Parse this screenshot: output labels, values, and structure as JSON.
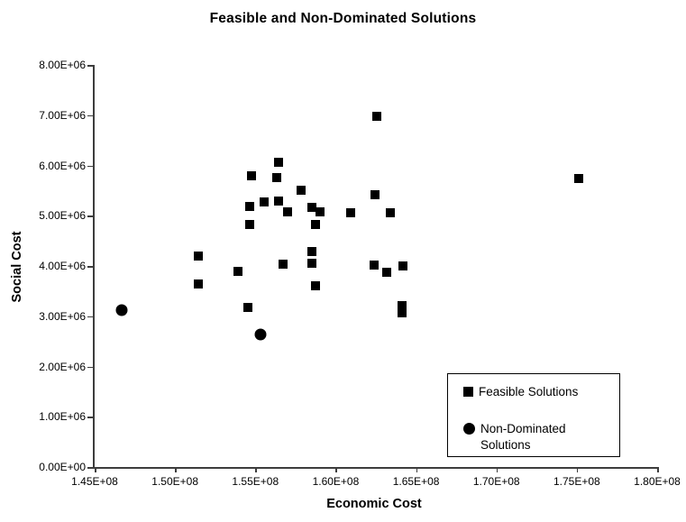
{
  "title": "Feasible and Non-Dominated Solutions",
  "colors": {
    "marker": "#000000",
    "axis": "#3d3d3d",
    "background": "#ffffff",
    "text": "#000000"
  },
  "chart_data": {
    "type": "scatter",
    "title": "Feasible and Non-Dominated Solutions",
    "xlabel": "Economic Cost",
    "ylabel": "Social Cost",
    "xlim": [
      145000000,
      180000000
    ],
    "ylim": [
      0,
      8000000
    ],
    "grid": false,
    "legend_position": "inside-bottom-right",
    "x_ticks": [
      "1.45E+08",
      "1.50E+08",
      "1.55E+08",
      "1.60E+08",
      "1.65E+08",
      "1.70E+08",
      "1.75E+08",
      "1.80E+08"
    ],
    "x_tick_values": [
      145000000,
      150000000,
      155000000,
      160000000,
      165000000,
      170000000,
      175000000,
      180000000
    ],
    "y_ticks": [
      "0.00E+00",
      "1.00E+06",
      "2.00E+06",
      "3.00E+06",
      "4.00E+06",
      "5.00E+06",
      "6.00E+06",
      "7.00E+06",
      "8.00E+06"
    ],
    "y_tick_values": [
      0,
      1000000,
      2000000,
      3000000,
      4000000,
      5000000,
      6000000,
      7000000,
      8000000
    ],
    "series": [
      {
        "name": "Feasible Solutions",
        "marker": "square",
        "color": "#000000",
        "points": [
          [
            156450000,
            6070000
          ],
          [
            154740000,
            5800000
          ],
          [
            156320000,
            5750000
          ],
          [
            157870000,
            5500000
          ],
          [
            155540000,
            5270000
          ],
          [
            156420000,
            5300000
          ],
          [
            154640000,
            5180000
          ],
          [
            156980000,
            5080000
          ],
          [
            158530000,
            5170000
          ],
          [
            159000000,
            5070000
          ],
          [
            154640000,
            4820000
          ],
          [
            158750000,
            4820000
          ],
          [
            160940000,
            5060000
          ],
          [
            163390000,
            5050000
          ],
          [
            162450000,
            5410000
          ],
          [
            162550000,
            6970000
          ],
          [
            175100000,
            5740000
          ],
          [
            151430000,
            4200000
          ],
          [
            151430000,
            3650000
          ],
          [
            153900000,
            3890000
          ],
          [
            154510000,
            3180000
          ],
          [
            156710000,
            4030000
          ],
          [
            158510000,
            4280000
          ],
          [
            158510000,
            4060000
          ],
          [
            162360000,
            4020000
          ],
          [
            163200000,
            3870000
          ],
          [
            164170000,
            4000000
          ],
          [
            164110000,
            3210000
          ],
          [
            164110000,
            3060000
          ],
          [
            158770000,
            3600000
          ]
        ]
      },
      {
        "name": "Non-Dominated Solutions",
        "marker": "circle",
        "color": "#000000",
        "points": [
          [
            146680000,
            3120000
          ],
          [
            155300000,
            2640000
          ]
        ]
      }
    ]
  }
}
